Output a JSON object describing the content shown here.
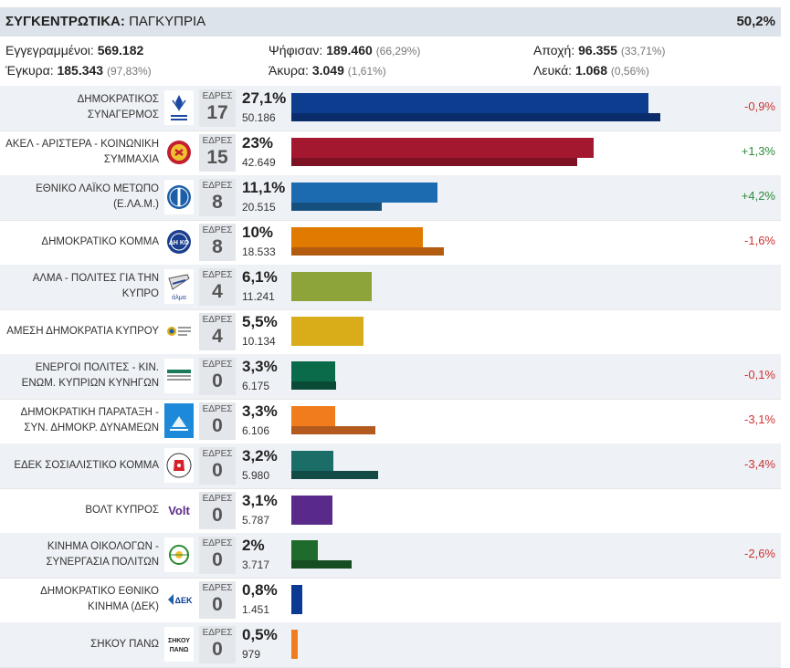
{
  "header": {
    "label": "ΣΥΓΚΕΝΤΡΩΤΙΚΑ:",
    "region": "ΠΑΓΚΥΠΡΙΑ",
    "counted": "50,2%"
  },
  "stats": {
    "registered_label": "Εγγεγραμμένοι:",
    "registered": "569.182",
    "voted_label": "Ψήφισαν:",
    "voted": "189.460",
    "voted_pct": "(66,29%)",
    "abstention_label": "Αποχή:",
    "abstention": "96.355",
    "abstention_pct": "(33,71%)",
    "valid_label": "Έγκυρα:",
    "valid": "185.343",
    "valid_pct": "(97,83%)",
    "invalid_label": "Άκυρα:",
    "invalid": "3.049",
    "invalid_pct": "(1,61%)",
    "blank_label": "Λευκά:",
    "blank": "1.068",
    "blank_pct": "(0,56%)"
  },
  "seats_label": "ΕΔΡΕΣ",
  "chart_data": {
    "type": "bar",
    "xlim": [
      0,
      34
    ],
    "categories": [
      "ΔΗΜΟΚΡΑΤΙΚΟΣ ΣΥΝΑΓΕΡΜΟΣ",
      "ΑΚΕΛ - ΑΡΙΣΤΕΡΑ - ΚΟΙΝΩΝΙΚΗ ΣΥΜΜΑΧΙΑ",
      "ΕΘΝΙΚΟ ΛΑΪΚΟ ΜΕΤΩΠΟ (Ε.ΛΑ.Μ.)",
      "ΔΗΜΟΚΡΑΤΙΚΟ ΚΟΜΜΑ",
      "ΑΛΜΑ - ΠΟΛΙΤΕΣ ΓΙΑ ΤΗΝ ΚΥΠΡΟ",
      "ΑΜΕΣΗ ΔΗΜΟΚΡΑΤΙΑ ΚΥΠΡΟΥ",
      "ΕΝΕΡΓΟΙ ΠΟΛΙΤΕΣ - ΚΙΝ. ΕΝΩΜ. ΚΥΠΡΙΩΝ ΚΥΝΗΓΩΝ",
      "ΔΗΜΟΚΡΑΤΙΚΗ ΠΑΡΑΤΑΞΗ - ΣΥΝ. ΔΗΜΟΚΡ. ΔΥΝΑΜΕΩΝ",
      "ΕΔΕΚ ΣΟΣΙΑΛΙΣΤΙΚΟ ΚΟΜΜΑ",
      "ΒΟΛΤ ΚΥΠΡΟΣ",
      "ΚΙΝΗΜΑ ΟΙΚΟΛΟΓΩΝ - ΣΥΝΕΡΓΑΣΙΑ ΠΟΛΙΤΩΝ",
      "ΔΗΜΟΚΡΑΤΙΚΟ ΕΘΝΙΚΟ ΚΙΝΗΜΑ (ΔΕΚ)",
      "ΣΗΚΟΥ ΠΑΝΩ"
    ],
    "series": [
      {
        "name": "",
        "values": [
          27.1,
          23,
          11.1,
          10,
          6.1,
          5.5,
          3.3,
          3.3,
          3.2,
          3.1,
          2,
          0.8,
          0.5
        ]
      },
      {
        "name": "",
        "values": [
          28.0,
          21.7,
          6.9,
          11.6,
          null,
          null,
          3.4,
          6.4,
          6.6,
          null,
          4.6,
          null,
          null
        ]
      }
    ],
    "seats": [
      "17",
      "15",
      "8",
      "8",
      "4",
      "4",
      "0",
      "0",
      "0",
      "0",
      "0",
      "0",
      "0"
    ],
    "pct_labels": [
      "27,1%",
      "23%",
      "11,1%",
      "10%",
      "6,1%",
      "5,5%",
      "3,3%",
      "3,3%",
      "3,2%",
      "3,1%",
      "2%",
      "0,8%",
      "0,5%"
    ],
    "votes": [
      "50.186",
      "42.649",
      "20.515",
      "18.533",
      "11.241",
      "10.134",
      "6.175",
      "6.106",
      "5.980",
      "5.787",
      "3.717",
      "1.451",
      "979"
    ],
    "changes": [
      "-0,9%",
      "+1,3%",
      "+4,2%",
      "-1,6%",
      "",
      "",
      "-0,1%",
      "-3,1%",
      "-3,4%",
      "",
      "-2,6%",
      "",
      ""
    ],
    "colors": [
      "#0c3d8f",
      "#a3182f",
      "#1c6bb0",
      "#e07a00",
      "#8ca43a",
      "#d9ac1a",
      "#0a6b4a",
      "#f07c1e",
      "#1b6e68",
      "#5a2a8a",
      "#1f6b2b",
      "#0b3a94",
      "#f07c1e"
    ],
    "prev_colors": [
      "#0a2c6a",
      "#7c1224",
      "#15507f",
      "#b35c10",
      "",
      "",
      "#0a4a36",
      "#b25a1f",
      "#124a45",
      "",
      "#154e20",
      "",
      ""
    ]
  },
  "icons": [
    "disy-logo",
    "akel-logo",
    "elam-logo",
    "diko-logo",
    "alma-logo",
    "amesi-dimokratia-logo",
    "energoi-polites-logo",
    "dipa-logo",
    "edek-logo",
    "volt-logo",
    "kinima-oikologon-logo",
    "dek-logo",
    "sikou-pano-logo"
  ],
  "logo_text": {
    "volt": "Volt",
    "dek": "ΔΕΚ",
    "alma": "άλμα",
    "diko": "ΔΗ ΚΟ",
    "sikou": "ΣΗΚΟΥ ΠΑΝΩ"
  }
}
